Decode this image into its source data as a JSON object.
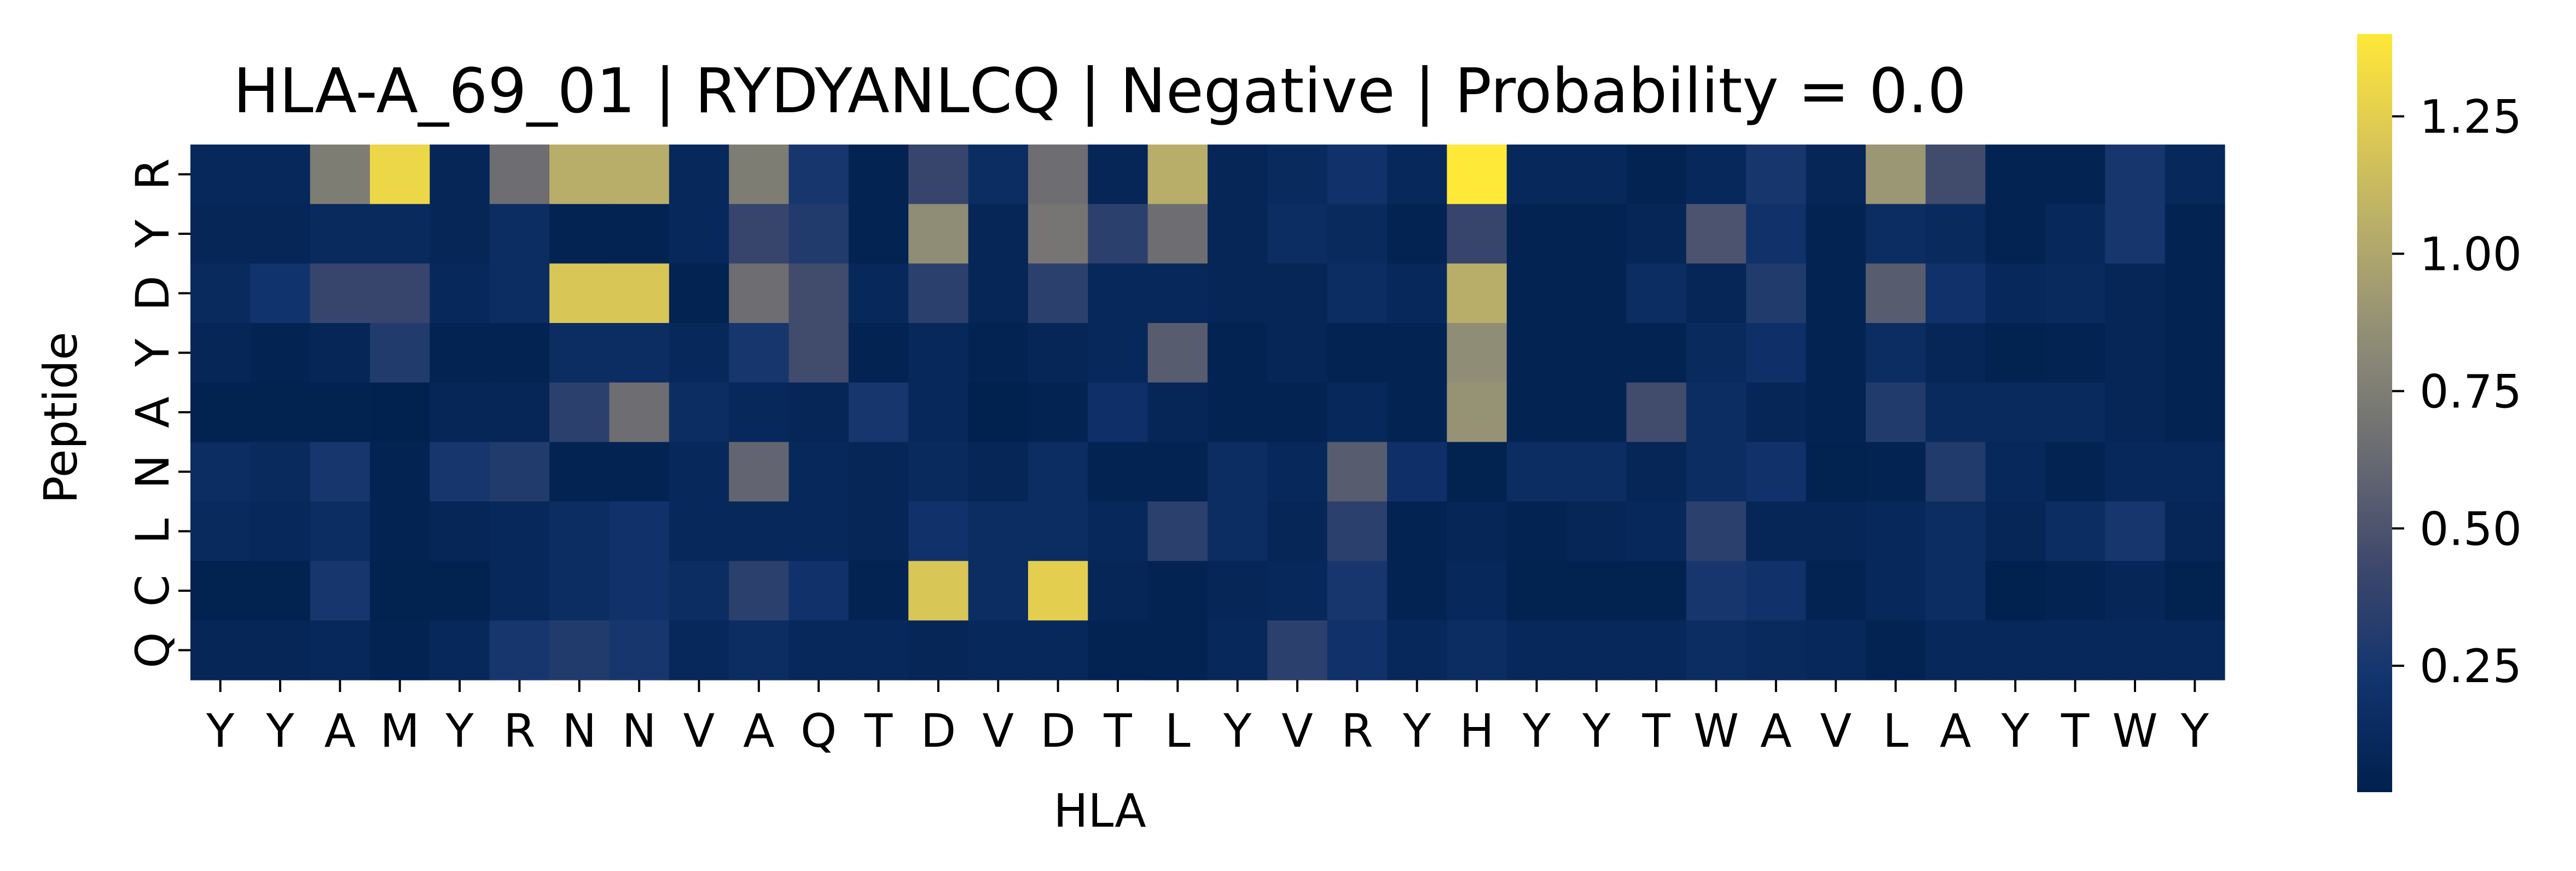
{
  "chart_data": {
    "type": "heatmap",
    "title": "HLA-A_69_01 | RYDYANLCQ | Negative | Probability = 0.0",
    "xlabel": "HLA",
    "ylabel": "Peptide",
    "x_categories": [
      "Y",
      "Y",
      "A",
      "M",
      "Y",
      "R",
      "N",
      "N",
      "V",
      "A",
      "Q",
      "T",
      "D",
      "V",
      "D",
      "T",
      "L",
      "Y",
      "V",
      "R",
      "Y",
      "H",
      "Y",
      "Y",
      "T",
      "W",
      "A",
      "V",
      "L",
      "A",
      "Y",
      "T",
      "W",
      "Y"
    ],
    "y_categories": [
      "R",
      "Y",
      "D",
      "Y",
      "A",
      "N",
      "L",
      "C",
      "Q"
    ],
    "colormap": "cividis",
    "colorbar": {
      "vmin": 0.02,
      "vmax": 1.4,
      "ticks": [
        0.25,
        0.5,
        0.75,
        1.0,
        1.25
      ],
      "tick_labels": [
        "0.25",
        "0.50",
        "0.75",
        "1.00",
        "1.25"
      ]
    },
    "values": [
      [
        0.1,
        0.1,
        0.75,
        1.3,
        0.08,
        0.65,
        1.05,
        1.05,
        0.1,
        0.75,
        0.25,
        0.05,
        0.4,
        0.15,
        0.65,
        0.08,
        1.05,
        0.08,
        0.12,
        0.2,
        0.1,
        1.4,
        0.1,
        0.1,
        0.05,
        0.1,
        0.25,
        0.08,
        0.9,
        0.45,
        0.05,
        0.05,
        0.25,
        0.1
      ],
      [
        0.08,
        0.08,
        0.12,
        0.12,
        0.08,
        0.15,
        0.05,
        0.06,
        0.1,
        0.4,
        0.3,
        0.05,
        0.85,
        0.08,
        0.7,
        0.35,
        0.65,
        0.08,
        0.15,
        0.12,
        0.05,
        0.4,
        0.05,
        0.05,
        0.08,
        0.5,
        0.2,
        0.06,
        0.15,
        0.12,
        0.05,
        0.1,
        0.25,
        0.05
      ],
      [
        0.12,
        0.22,
        0.4,
        0.4,
        0.1,
        0.15,
        1.2,
        1.2,
        0.05,
        0.65,
        0.45,
        0.1,
        0.35,
        0.08,
        0.35,
        0.1,
        0.1,
        0.08,
        0.08,
        0.15,
        0.1,
        1.05,
        0.05,
        0.05,
        0.15,
        0.08,
        0.3,
        0.06,
        0.55,
        0.2,
        0.1,
        0.12,
        0.08,
        0.06
      ],
      [
        0.08,
        0.06,
        0.08,
        0.3,
        0.06,
        0.06,
        0.15,
        0.15,
        0.1,
        0.25,
        0.45,
        0.05,
        0.1,
        0.06,
        0.08,
        0.1,
        0.55,
        0.06,
        0.08,
        0.06,
        0.06,
        0.85,
        0.05,
        0.05,
        0.05,
        0.12,
        0.18,
        0.05,
        0.15,
        0.08,
        0.04,
        0.05,
        0.08,
        0.05
      ],
      [
        0.04,
        0.04,
        0.04,
        0.03,
        0.08,
        0.08,
        0.35,
        0.65,
        0.15,
        0.1,
        0.08,
        0.25,
        0.1,
        0.03,
        0.06,
        0.18,
        0.08,
        0.06,
        0.05,
        0.1,
        0.06,
        0.88,
        0.06,
        0.06,
        0.45,
        0.15,
        0.08,
        0.06,
        0.3,
        0.12,
        0.12,
        0.12,
        0.08,
        0.06
      ],
      [
        0.15,
        0.12,
        0.25,
        0.05,
        0.25,
        0.3,
        0.06,
        0.06,
        0.1,
        0.6,
        0.1,
        0.08,
        0.12,
        0.08,
        0.15,
        0.05,
        0.05,
        0.15,
        0.1,
        0.55,
        0.18,
        0.04,
        0.15,
        0.15,
        0.08,
        0.15,
        0.2,
        0.04,
        0.06,
        0.3,
        0.1,
        0.06,
        0.1,
        0.1
      ],
      [
        0.12,
        0.1,
        0.15,
        0.05,
        0.08,
        0.1,
        0.15,
        0.2,
        0.1,
        0.1,
        0.1,
        0.08,
        0.2,
        0.15,
        0.15,
        0.1,
        0.35,
        0.15,
        0.08,
        0.35,
        0.05,
        0.08,
        0.06,
        0.08,
        0.1,
        0.35,
        0.08,
        0.08,
        0.1,
        0.15,
        0.08,
        0.15,
        0.25,
        0.08
      ],
      [
        0.04,
        0.04,
        0.25,
        0.04,
        0.04,
        0.1,
        0.15,
        0.2,
        0.15,
        0.35,
        0.2,
        0.06,
        1.2,
        0.15,
        1.25,
        0.08,
        0.06,
        0.08,
        0.1,
        0.25,
        0.06,
        0.1,
        0.04,
        0.04,
        0.04,
        0.25,
        0.2,
        0.06,
        0.1,
        0.15,
        0.03,
        0.06,
        0.08,
        0.04
      ],
      [
        0.08,
        0.08,
        0.1,
        0.05,
        0.1,
        0.25,
        0.3,
        0.25,
        0.1,
        0.15,
        0.1,
        0.1,
        0.08,
        0.1,
        0.1,
        0.06,
        0.05,
        0.1,
        0.35,
        0.2,
        0.1,
        0.15,
        0.1,
        0.1,
        0.1,
        0.15,
        0.12,
        0.1,
        0.06,
        0.1,
        0.1,
        0.1,
        0.1,
        0.1
      ]
    ]
  }
}
